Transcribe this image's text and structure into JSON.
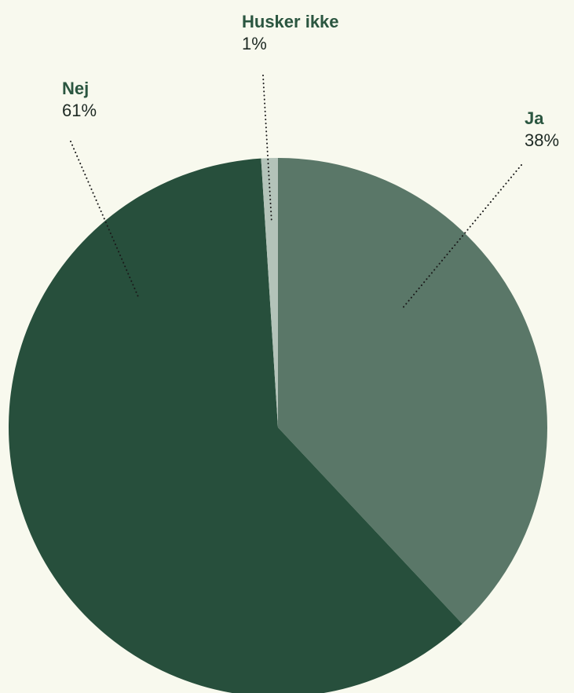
{
  "chart_data": {
    "type": "pie",
    "slices": [
      {
        "label": "Ja",
        "value": 38,
        "value_label": "38%",
        "color": "#5a7768"
      },
      {
        "label": "Nej",
        "value": 61,
        "value_label": "61%",
        "color": "#274f3c"
      },
      {
        "label": "Husker ikke",
        "value": 1,
        "value_label": "1%",
        "color": "#b3c3b9"
      }
    ],
    "label_color": "#2b5640",
    "leader_line_style": "dotted",
    "legend": "none"
  }
}
